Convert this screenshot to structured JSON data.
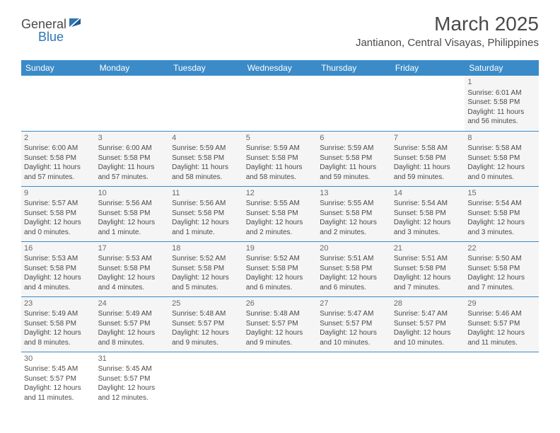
{
  "logo": {
    "text_dark": "General",
    "text_blue": "Blue"
  },
  "title": "March 2025",
  "location": "Jantianon, Central Visayas, Philippines",
  "colors": {
    "header_bg": "#3b8bc8",
    "header_text": "#ffffff",
    "cell_bg": "#f5f5f5",
    "border": "#3b8bc8",
    "text": "#4a4a4a",
    "logo_blue": "#2e75b6"
  },
  "day_headers": [
    "Sunday",
    "Monday",
    "Tuesday",
    "Wednesday",
    "Thursday",
    "Friday",
    "Saturday"
  ],
  "weeks": [
    [
      null,
      null,
      null,
      null,
      null,
      null,
      {
        "n": "1",
        "sunrise": "6:01 AM",
        "sunset": "5:58 PM",
        "daylight": "11 hours and 56 minutes."
      }
    ],
    [
      {
        "n": "2",
        "sunrise": "6:00 AM",
        "sunset": "5:58 PM",
        "daylight": "11 hours and 57 minutes."
      },
      {
        "n": "3",
        "sunrise": "6:00 AM",
        "sunset": "5:58 PM",
        "daylight": "11 hours and 57 minutes."
      },
      {
        "n": "4",
        "sunrise": "5:59 AM",
        "sunset": "5:58 PM",
        "daylight": "11 hours and 58 minutes."
      },
      {
        "n": "5",
        "sunrise": "5:59 AM",
        "sunset": "5:58 PM",
        "daylight": "11 hours and 58 minutes."
      },
      {
        "n": "6",
        "sunrise": "5:59 AM",
        "sunset": "5:58 PM",
        "daylight": "11 hours and 59 minutes."
      },
      {
        "n": "7",
        "sunrise": "5:58 AM",
        "sunset": "5:58 PM",
        "daylight": "11 hours and 59 minutes."
      },
      {
        "n": "8",
        "sunrise": "5:58 AM",
        "sunset": "5:58 PM",
        "daylight": "12 hours and 0 minutes."
      }
    ],
    [
      {
        "n": "9",
        "sunrise": "5:57 AM",
        "sunset": "5:58 PM",
        "daylight": "12 hours and 0 minutes."
      },
      {
        "n": "10",
        "sunrise": "5:56 AM",
        "sunset": "5:58 PM",
        "daylight": "12 hours and 1 minute."
      },
      {
        "n": "11",
        "sunrise": "5:56 AM",
        "sunset": "5:58 PM",
        "daylight": "12 hours and 1 minute."
      },
      {
        "n": "12",
        "sunrise": "5:55 AM",
        "sunset": "5:58 PM",
        "daylight": "12 hours and 2 minutes."
      },
      {
        "n": "13",
        "sunrise": "5:55 AM",
        "sunset": "5:58 PM",
        "daylight": "12 hours and 2 minutes."
      },
      {
        "n": "14",
        "sunrise": "5:54 AM",
        "sunset": "5:58 PM",
        "daylight": "12 hours and 3 minutes."
      },
      {
        "n": "15",
        "sunrise": "5:54 AM",
        "sunset": "5:58 PM",
        "daylight": "12 hours and 3 minutes."
      }
    ],
    [
      {
        "n": "16",
        "sunrise": "5:53 AM",
        "sunset": "5:58 PM",
        "daylight": "12 hours and 4 minutes."
      },
      {
        "n": "17",
        "sunrise": "5:53 AM",
        "sunset": "5:58 PM",
        "daylight": "12 hours and 4 minutes."
      },
      {
        "n": "18",
        "sunrise": "5:52 AM",
        "sunset": "5:58 PM",
        "daylight": "12 hours and 5 minutes."
      },
      {
        "n": "19",
        "sunrise": "5:52 AM",
        "sunset": "5:58 PM",
        "daylight": "12 hours and 6 minutes."
      },
      {
        "n": "20",
        "sunrise": "5:51 AM",
        "sunset": "5:58 PM",
        "daylight": "12 hours and 6 minutes."
      },
      {
        "n": "21",
        "sunrise": "5:51 AM",
        "sunset": "5:58 PM",
        "daylight": "12 hours and 7 minutes."
      },
      {
        "n": "22",
        "sunrise": "5:50 AM",
        "sunset": "5:58 PM",
        "daylight": "12 hours and 7 minutes."
      }
    ],
    [
      {
        "n": "23",
        "sunrise": "5:49 AM",
        "sunset": "5:58 PM",
        "daylight": "12 hours and 8 minutes."
      },
      {
        "n": "24",
        "sunrise": "5:49 AM",
        "sunset": "5:57 PM",
        "daylight": "12 hours and 8 minutes."
      },
      {
        "n": "25",
        "sunrise": "5:48 AM",
        "sunset": "5:57 PM",
        "daylight": "12 hours and 9 minutes."
      },
      {
        "n": "26",
        "sunrise": "5:48 AM",
        "sunset": "5:57 PM",
        "daylight": "12 hours and 9 minutes."
      },
      {
        "n": "27",
        "sunrise": "5:47 AM",
        "sunset": "5:57 PM",
        "daylight": "12 hours and 10 minutes."
      },
      {
        "n": "28",
        "sunrise": "5:47 AM",
        "sunset": "5:57 PM",
        "daylight": "12 hours and 10 minutes."
      },
      {
        "n": "29",
        "sunrise": "5:46 AM",
        "sunset": "5:57 PM",
        "daylight": "12 hours and 11 minutes."
      }
    ],
    [
      {
        "n": "30",
        "sunrise": "5:45 AM",
        "sunset": "5:57 PM",
        "daylight": "12 hours and 11 minutes."
      },
      {
        "n": "31",
        "sunrise": "5:45 AM",
        "sunset": "5:57 PM",
        "daylight": "12 hours and 12 minutes."
      },
      null,
      null,
      null,
      null,
      null
    ]
  ],
  "labels": {
    "sunrise": "Sunrise:",
    "sunset": "Sunset:",
    "daylight": "Daylight:"
  }
}
